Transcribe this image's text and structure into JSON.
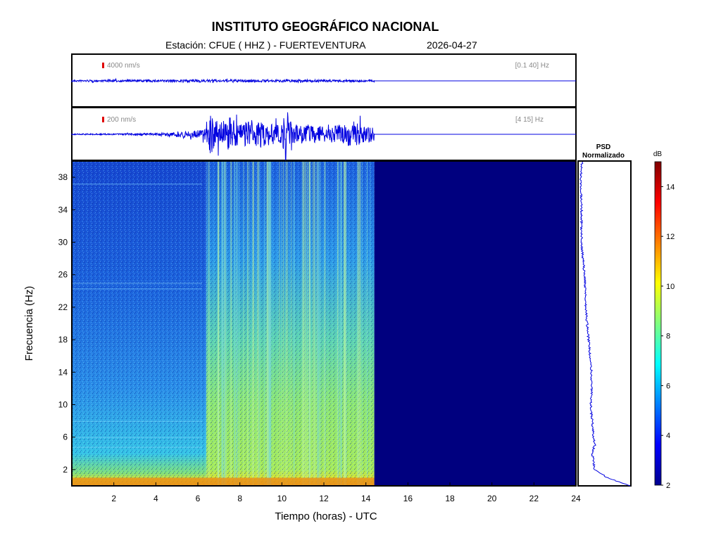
{
  "header": {
    "title": "INSTITUTO GEOGRÁFICO NACIONAL",
    "station": "Estación:  CFUE ( HHZ ) - FUERTEVENTURA",
    "date": "2026-04-27"
  },
  "colors": {
    "trace": "#0000e0",
    "scale_bar": "#e00000",
    "empty_spectrogram": "#00007f"
  },
  "chart_data": [
    {
      "type": "line",
      "name": "seismogram-broadband",
      "amplitude_label": "4000 nm/s",
      "filter_label": "[0.1 40] Hz",
      "x_range": [
        0,
        24
      ],
      "data_end_hour": 14.4,
      "envelope": {
        "x": [
          0,
          6,
          14.4
        ],
        "y": [
          0.8,
          1.2,
          1.0
        ]
      }
    },
    {
      "type": "line",
      "name": "seismogram-filtered",
      "amplitude_label": "200 nm/s",
      "filter_label": "[4 15] Hz",
      "x_range": [
        0,
        24
      ],
      "data_end_hour": 14.4,
      "envelope": {
        "x": [
          0,
          2,
          4,
          5,
          6,
          6.4,
          6.6,
          7,
          7.5,
          8,
          8.5,
          9,
          9.5,
          10,
          10.2,
          10.5,
          11,
          12,
          13,
          13.5,
          14,
          14.4
        ],
        "y": [
          0.8,
          1.0,
          2.0,
          4.0,
          6.0,
          10,
          30,
          20,
          26,
          14,
          22,
          18,
          16,
          14,
          40,
          16,
          14,
          12,
          14,
          20,
          14,
          10
        ]
      }
    },
    {
      "type": "heatmap",
      "name": "spectrogram",
      "xlabel": "Tiempo (horas) - UTC",
      "ylabel": "Frecuencia  (Hz)",
      "xlim": [
        0,
        24
      ],
      "ylim": [
        0,
        40
      ],
      "xticks": [
        2,
        4,
        6,
        8,
        10,
        12,
        14,
        16,
        18,
        20,
        22,
        24
      ],
      "yticks": [
        2,
        6,
        10,
        14,
        18,
        22,
        26,
        30,
        34,
        38
      ],
      "data_end_hour": 14.4,
      "power_db": {
        "time": [
          0,
          6.3,
          6.4,
          14.4
        ],
        "freq": [
          0,
          1,
          2,
          4,
          6,
          8,
          12,
          16,
          20,
          24,
          28,
          32,
          36,
          40
        ],
        "values": [
          [
            12,
            11,
            9,
            7.5,
            7,
            6.5,
            6,
            5.5,
            5,
            5,
            4.5,
            4.5,
            4.2,
            4
          ],
          [
            12,
            11,
            9,
            7.5,
            7,
            6.5,
            6,
            5.5,
            5,
            5,
            4.5,
            4.5,
            4.2,
            4
          ],
          [
            12,
            11,
            9,
            8,
            8,
            8,
            8,
            8,
            7.5,
            7,
            6,
            5.5,
            5,
            5
          ],
          [
            12,
            11,
            9,
            8,
            8,
            8,
            8,
            8,
            7.5,
            7,
            6,
            5.5,
            5,
            5
          ]
        ]
      }
    },
    {
      "type": "line",
      "name": "psd-normalized",
      "title": "PSD Normalizado",
      "freq": [
        0,
        1,
        2,
        4,
        5,
        6,
        8,
        10,
        12,
        14,
        18,
        22,
        26,
        30,
        34,
        38,
        40
      ],
      "values": [
        1.0,
        0.55,
        0.3,
        0.25,
        0.3,
        0.28,
        0.25,
        0.22,
        0.24,
        0.24,
        0.18,
        0.12,
        0.1,
        0.04,
        0.04,
        0.03,
        0.05
      ]
    },
    {
      "type": "heatmap",
      "name": "colorbar",
      "label": "dB",
      "range": [
        2,
        15
      ],
      "ticks": [
        2,
        4,
        6,
        8,
        10,
        12,
        14
      ]
    }
  ]
}
